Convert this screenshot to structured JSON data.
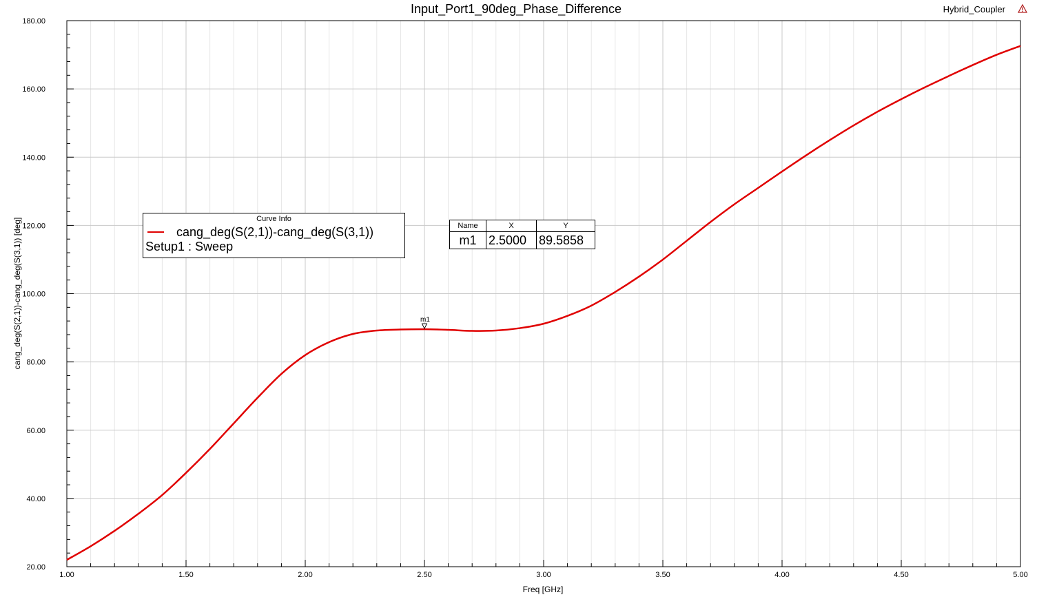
{
  "header": {
    "title": "Input_Port1_90deg_Phase_Difference",
    "project": "Hybrid_Coupler"
  },
  "curve_info": {
    "heading": "Curve Info",
    "expression": "cang_deg(S(2,1))-cang_deg(S(3,1))",
    "setup": "Setup1 : Sweep"
  },
  "marker_table": {
    "headers": [
      "Name",
      "X",
      "Y"
    ],
    "name": "m1",
    "x": "2.5000",
    "y": "89.5858"
  },
  "chart_data": {
    "type": "line",
    "title": "Input_Port1_90deg_Phase_Difference",
    "xlabel": "Freq [GHz]",
    "ylabel": "cang_deg(S(2,1))-cang_deg(S(3,1)) [deg]",
    "xlim": [
      1.0,
      5.0
    ],
    "ylim": [
      20.0,
      180.0
    ],
    "xticks": [
      "1.00",
      "1.50",
      "2.00",
      "2.50",
      "3.00",
      "3.50",
      "4.00",
      "4.50",
      "5.00"
    ],
    "yticks": [
      "20.00",
      "40.00",
      "60.00",
      "80.00",
      "100.00",
      "120.00",
      "140.00",
      "160.00",
      "180.00"
    ],
    "grid": true,
    "series": [
      {
        "name": "cang_deg(S(2,1))-cang_deg(S(3,1))",
        "color": "#e00000",
        "x": [
          1.0,
          1.1,
          1.2,
          1.3,
          1.4,
          1.5,
          1.6,
          1.7,
          1.8,
          1.9,
          2.0,
          2.1,
          2.2,
          2.3,
          2.4,
          2.5,
          2.6,
          2.7,
          2.8,
          2.9,
          3.0,
          3.1,
          3.2,
          3.3,
          3.4,
          3.5,
          3.6,
          3.7,
          3.8,
          3.9,
          4.0,
          4.1,
          4.2,
          4.3,
          4.4,
          4.5,
          4.6,
          4.7,
          4.8,
          4.9,
          5.0
        ],
        "y": [
          22.0,
          26.0,
          30.5,
          35.5,
          41.0,
          47.5,
          54.5,
          62.0,
          69.5,
          76.5,
          82.0,
          85.8,
          88.2,
          89.2,
          89.5,
          89.59,
          89.4,
          89.1,
          89.2,
          89.9,
          91.2,
          93.5,
          96.5,
          100.5,
          105.0,
          110.0,
          115.5,
          121.0,
          126.2,
          131.0,
          135.8,
          140.5,
          145.0,
          149.3,
          153.3,
          157.0,
          160.5,
          163.8,
          167.0,
          170.0,
          172.6
        ]
      }
    ],
    "markers": [
      {
        "name": "m1",
        "x": 2.5,
        "y": 89.5858
      }
    ]
  }
}
